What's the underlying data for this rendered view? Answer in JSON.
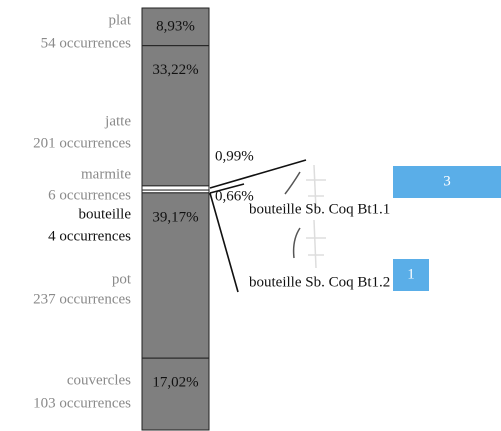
{
  "chart_data": [
    {
      "type": "stacked-bar",
      "categories": [
        "plat",
        "jatte",
        "marmite",
        "bouteille",
        "pot",
        "couvercles"
      ],
      "occurrence_labels": [
        "54 occurrences",
        "201 occurrences",
        "6 occurrences",
        "4 occurrences",
        "237 occurrences",
        "103 occurrences"
      ],
      "values": [
        8.93,
        33.22,
        0.99,
        0.66,
        39.17,
        17.02
      ],
      "value_labels": [
        "8,93%",
        "33,22%",
        "0,99%",
        "0,66%",
        "39,17%",
        "17,02%"
      ],
      "colors": [
        "#7f7f7f",
        "#7f7f7f",
        "#ffffff",
        "#ffffff",
        "#7f7f7f",
        "#7f7f7f"
      ],
      "label_colors": [
        "#8a8a8a",
        "#8a8a8a",
        "#8a8a8a",
        "#111111",
        "#8a8a8a",
        "#8a8a8a"
      ]
    },
    {
      "type": "hbar",
      "categories": [
        "bouteille Sb. Coq Bt1.1",
        "bouteille Sb. Coq Bt1.2"
      ],
      "values": [
        3,
        1
      ],
      "color": "#5aaee8"
    }
  ]
}
